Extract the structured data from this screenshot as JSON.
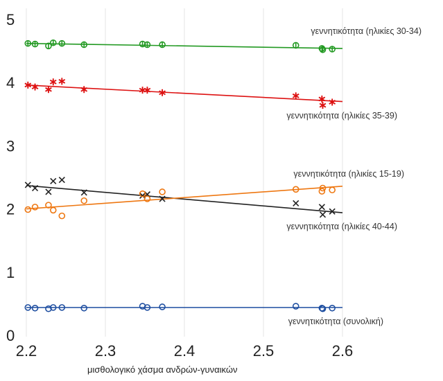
{
  "chart_data": {
    "type": "scatter",
    "title": "",
    "xlabel": "μισθολογικό χάσμα ανδρών-γυναικών",
    "ylabel": "",
    "xlim": [
      2.2,
      2.6
    ],
    "ylim": [
      0,
      5
    ],
    "xticks": [
      "2.2",
      "2.3",
      "2.4",
      "2.5",
      "2.6"
    ],
    "yticks": [
      "0",
      "1",
      "2",
      "3",
      "4",
      "5"
    ],
    "grid": "vertical",
    "series": [
      {
        "name": "γεννητικότητα (ηλικίες 30-34)",
        "color": "#229922",
        "marker": "circle-cross",
        "x": [
          2.202,
          2.211,
          2.228,
          2.234,
          2.245,
          2.273,
          2.347,
          2.353,
          2.372,
          2.541,
          2.574,
          2.575,
          2.587
        ],
        "y": [
          4.62,
          4.61,
          4.58,
          4.63,
          4.62,
          4.6,
          4.61,
          4.6,
          4.6,
          4.59,
          4.54,
          4.52,
          4.53
        ],
        "trend": [
          [
            2.2,
            4.62
          ],
          [
            2.6,
            4.54
          ]
        ]
      },
      {
        "name": "γεννητικότητα (ηλικίες 35-39)",
        "color": "#dd1111",
        "marker": "asterisk",
        "x": [
          2.202,
          2.211,
          2.228,
          2.234,
          2.245,
          2.273,
          2.347,
          2.353,
          2.372,
          2.541,
          2.574,
          2.575,
          2.587
        ],
        "y": [
          3.96,
          3.93,
          3.89,
          4.01,
          4.02,
          3.89,
          3.88,
          3.88,
          3.84,
          3.79,
          3.74,
          3.64,
          3.69
        ],
        "trend": [
          [
            2.2,
            3.96
          ],
          [
            2.6,
            3.7
          ]
        ]
      },
      {
        "name": "γεννητικότητα (ηλικίες 40-44)",
        "color": "#222222",
        "marker": "x",
        "x": [
          2.202,
          2.211,
          2.228,
          2.234,
          2.245,
          2.273,
          2.347,
          2.353,
          2.372,
          2.541,
          2.574,
          2.575,
          2.587
        ],
        "y": [
          2.38,
          2.33,
          2.27,
          2.44,
          2.46,
          2.26,
          2.21,
          2.23,
          2.16,
          2.09,
          2.03,
          1.91,
          1.96
        ],
        "trend": [
          [
            2.2,
            2.37
          ],
          [
            2.6,
            1.94
          ]
        ]
      },
      {
        "name": "γεννητικότητα (ηλικίες 15-19)",
        "color": "#ee7711",
        "marker": "circle",
        "x": [
          2.202,
          2.211,
          2.228,
          2.234,
          2.245,
          2.273,
          2.347,
          2.353,
          2.372,
          2.541,
          2.574,
          2.575,
          2.587
        ],
        "y": [
          1.99,
          2.03,
          2.06,
          1.98,
          1.89,
          2.13,
          2.24,
          2.16,
          2.27,
          2.31,
          2.28,
          2.33,
          2.3
        ],
        "trend": [
          [
            2.2,
            2.0
          ],
          [
            2.6,
            2.36
          ]
        ]
      },
      {
        "name": "γεννητικότητα (συνολική)",
        "color": "#1e4ea0",
        "marker": "circle",
        "x": [
          2.202,
          2.211,
          2.228,
          2.234,
          2.245,
          2.273,
          2.347,
          2.353,
          2.372,
          2.541,
          2.574,
          2.575,
          2.587
        ],
        "y": [
          0.44,
          0.43,
          0.42,
          0.44,
          0.44,
          0.43,
          0.46,
          0.44,
          0.45,
          0.46,
          0.43,
          0.42,
          0.43
        ],
        "trend": [
          [
            2.2,
            0.44
          ],
          [
            2.6,
            0.44
          ]
        ]
      }
    ]
  }
}
